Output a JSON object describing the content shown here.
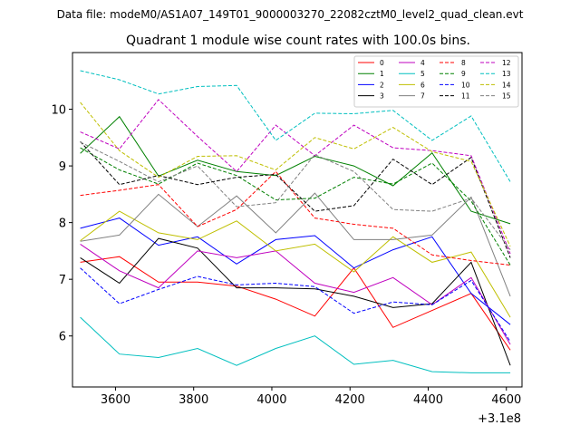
{
  "chart_data": {
    "type": "line",
    "suptitle": "Data file: modeM0/AS1A07_149T01_9000003270_22082cztM0_level2_quad_clean.evt",
    "title": "Quadrant 1 module wise count rates with 100.0s bins.",
    "xlabel": "",
    "ylabel": "",
    "x_offset_label": "+3.1e8",
    "xlim": [
      3490,
      4640
    ],
    "ylim": [
      5.1,
      11.0
    ],
    "x_ticks": [
      3600,
      3800,
      4000,
      4200,
      4400,
      4600
    ],
    "x_tick_labels": [
      "3600",
      "3800",
      "4000",
      "4200",
      "4400",
      "4600"
    ],
    "y_ticks": [
      6,
      7,
      8,
      9,
      10
    ],
    "y_tick_labels": [
      "6",
      "7",
      "8",
      "9",
      "10"
    ],
    "x": [
      3510,
      3610,
      3710,
      3810,
      3910,
      4010,
      4110,
      4210,
      4310,
      4410,
      4510,
      4610
    ],
    "legend_position": "upper right",
    "legend_columns": 4,
    "series": [
      {
        "name": "0",
        "color": "#ff0000",
        "dash": "solid",
        "values": [
          7.3,
          7.4,
          6.95,
          6.95,
          6.88,
          6.65,
          6.35,
          7.2,
          6.15,
          6.45,
          6.75,
          5.75
        ]
      },
      {
        "name": "1",
        "color": "#008000",
        "dash": "solid",
        "values": [
          9.22,
          9.87,
          8.82,
          9.1,
          8.9,
          8.83,
          9.17,
          9.0,
          8.65,
          9.23,
          8.2,
          7.98
        ]
      },
      {
        "name": "2",
        "color": "#0000ff",
        "dash": "solid",
        "values": [
          7.9,
          8.08,
          7.6,
          7.75,
          7.27,
          7.7,
          7.77,
          7.2,
          7.52,
          7.75,
          6.75,
          6.2
        ]
      },
      {
        "name": "3",
        "color": "#000000",
        "dash": "solid",
        "values": [
          7.38,
          6.93,
          7.72,
          7.55,
          6.85,
          6.85,
          6.83,
          6.7,
          6.5,
          6.57,
          7.3,
          5.48
        ]
      },
      {
        "name": "4",
        "color": "#bf00bf",
        "dash": "solid",
        "values": [
          7.62,
          7.15,
          6.85,
          7.5,
          7.38,
          7.5,
          6.93,
          6.77,
          7.03,
          6.55,
          7.03,
          5.85
        ]
      },
      {
        "name": "5",
        "color": "#00bfbf",
        "dash": "solid",
        "values": [
          6.33,
          5.68,
          5.62,
          5.78,
          5.48,
          5.78,
          6.0,
          5.5,
          5.57,
          5.37,
          5.35,
          5.35
        ]
      },
      {
        "name": "6",
        "color": "#bfbf00",
        "dash": "solid",
        "values": [
          7.68,
          8.2,
          7.82,
          7.7,
          8.03,
          7.5,
          7.62,
          7.13,
          7.75,
          7.3,
          7.48,
          6.33
        ]
      },
      {
        "name": "7",
        "color": "#808080",
        "dash": "solid",
        "values": [
          7.67,
          7.78,
          8.5,
          7.93,
          8.47,
          7.82,
          8.52,
          7.7,
          7.7,
          7.78,
          8.45,
          6.7
        ]
      },
      {
        "name": "8",
        "color": "#ff0000",
        "dash": "dashed",
        "values": [
          8.48,
          8.57,
          8.67,
          7.93,
          8.23,
          8.9,
          8.08,
          7.97,
          7.9,
          7.43,
          7.33,
          7.25
        ]
      },
      {
        "name": "9",
        "color": "#008000",
        "dash": "dashed",
        "values": [
          9.32,
          8.93,
          8.68,
          9.05,
          8.83,
          8.4,
          8.43,
          8.8,
          8.68,
          9.05,
          8.38,
          7.25
        ]
      },
      {
        "name": "10",
        "color": "#0000ff",
        "dash": "dashed",
        "values": [
          7.2,
          6.57,
          6.82,
          7.05,
          6.9,
          6.93,
          6.87,
          6.4,
          6.6,
          6.55,
          6.98,
          5.9
        ]
      },
      {
        "name": "11",
        "color": "#000000",
        "dash": "dashed",
        "values": [
          9.43,
          8.67,
          8.83,
          8.67,
          8.8,
          8.85,
          8.2,
          8.3,
          9.12,
          8.67,
          9.15,
          7.38
        ]
      },
      {
        "name": "12",
        "color": "#bf00bf",
        "dash": "dashed",
        "values": [
          9.6,
          9.3,
          10.17,
          9.52,
          8.9,
          9.72,
          9.18,
          9.72,
          9.32,
          9.27,
          9.18,
          7.45
        ]
      },
      {
        "name": "13",
        "color": "#00bfbf",
        "dash": "dashed",
        "values": [
          10.68,
          10.52,
          10.27,
          10.4,
          10.42,
          9.45,
          9.93,
          9.92,
          9.98,
          9.45,
          9.88,
          8.72
        ]
      },
      {
        "name": "14",
        "color": "#bfbf00",
        "dash": "dashed",
        "values": [
          10.12,
          9.27,
          8.8,
          9.17,
          9.18,
          8.93,
          9.5,
          9.3,
          9.68,
          9.25,
          9.08,
          7.58
        ]
      },
      {
        "name": "15",
        "color": "#808080",
        "dash": "dashed",
        "values": [
          9.42,
          9.08,
          8.72,
          9.0,
          8.28,
          8.35,
          9.2,
          8.9,
          8.23,
          8.2,
          8.43,
          7.52
        ]
      }
    ]
  }
}
